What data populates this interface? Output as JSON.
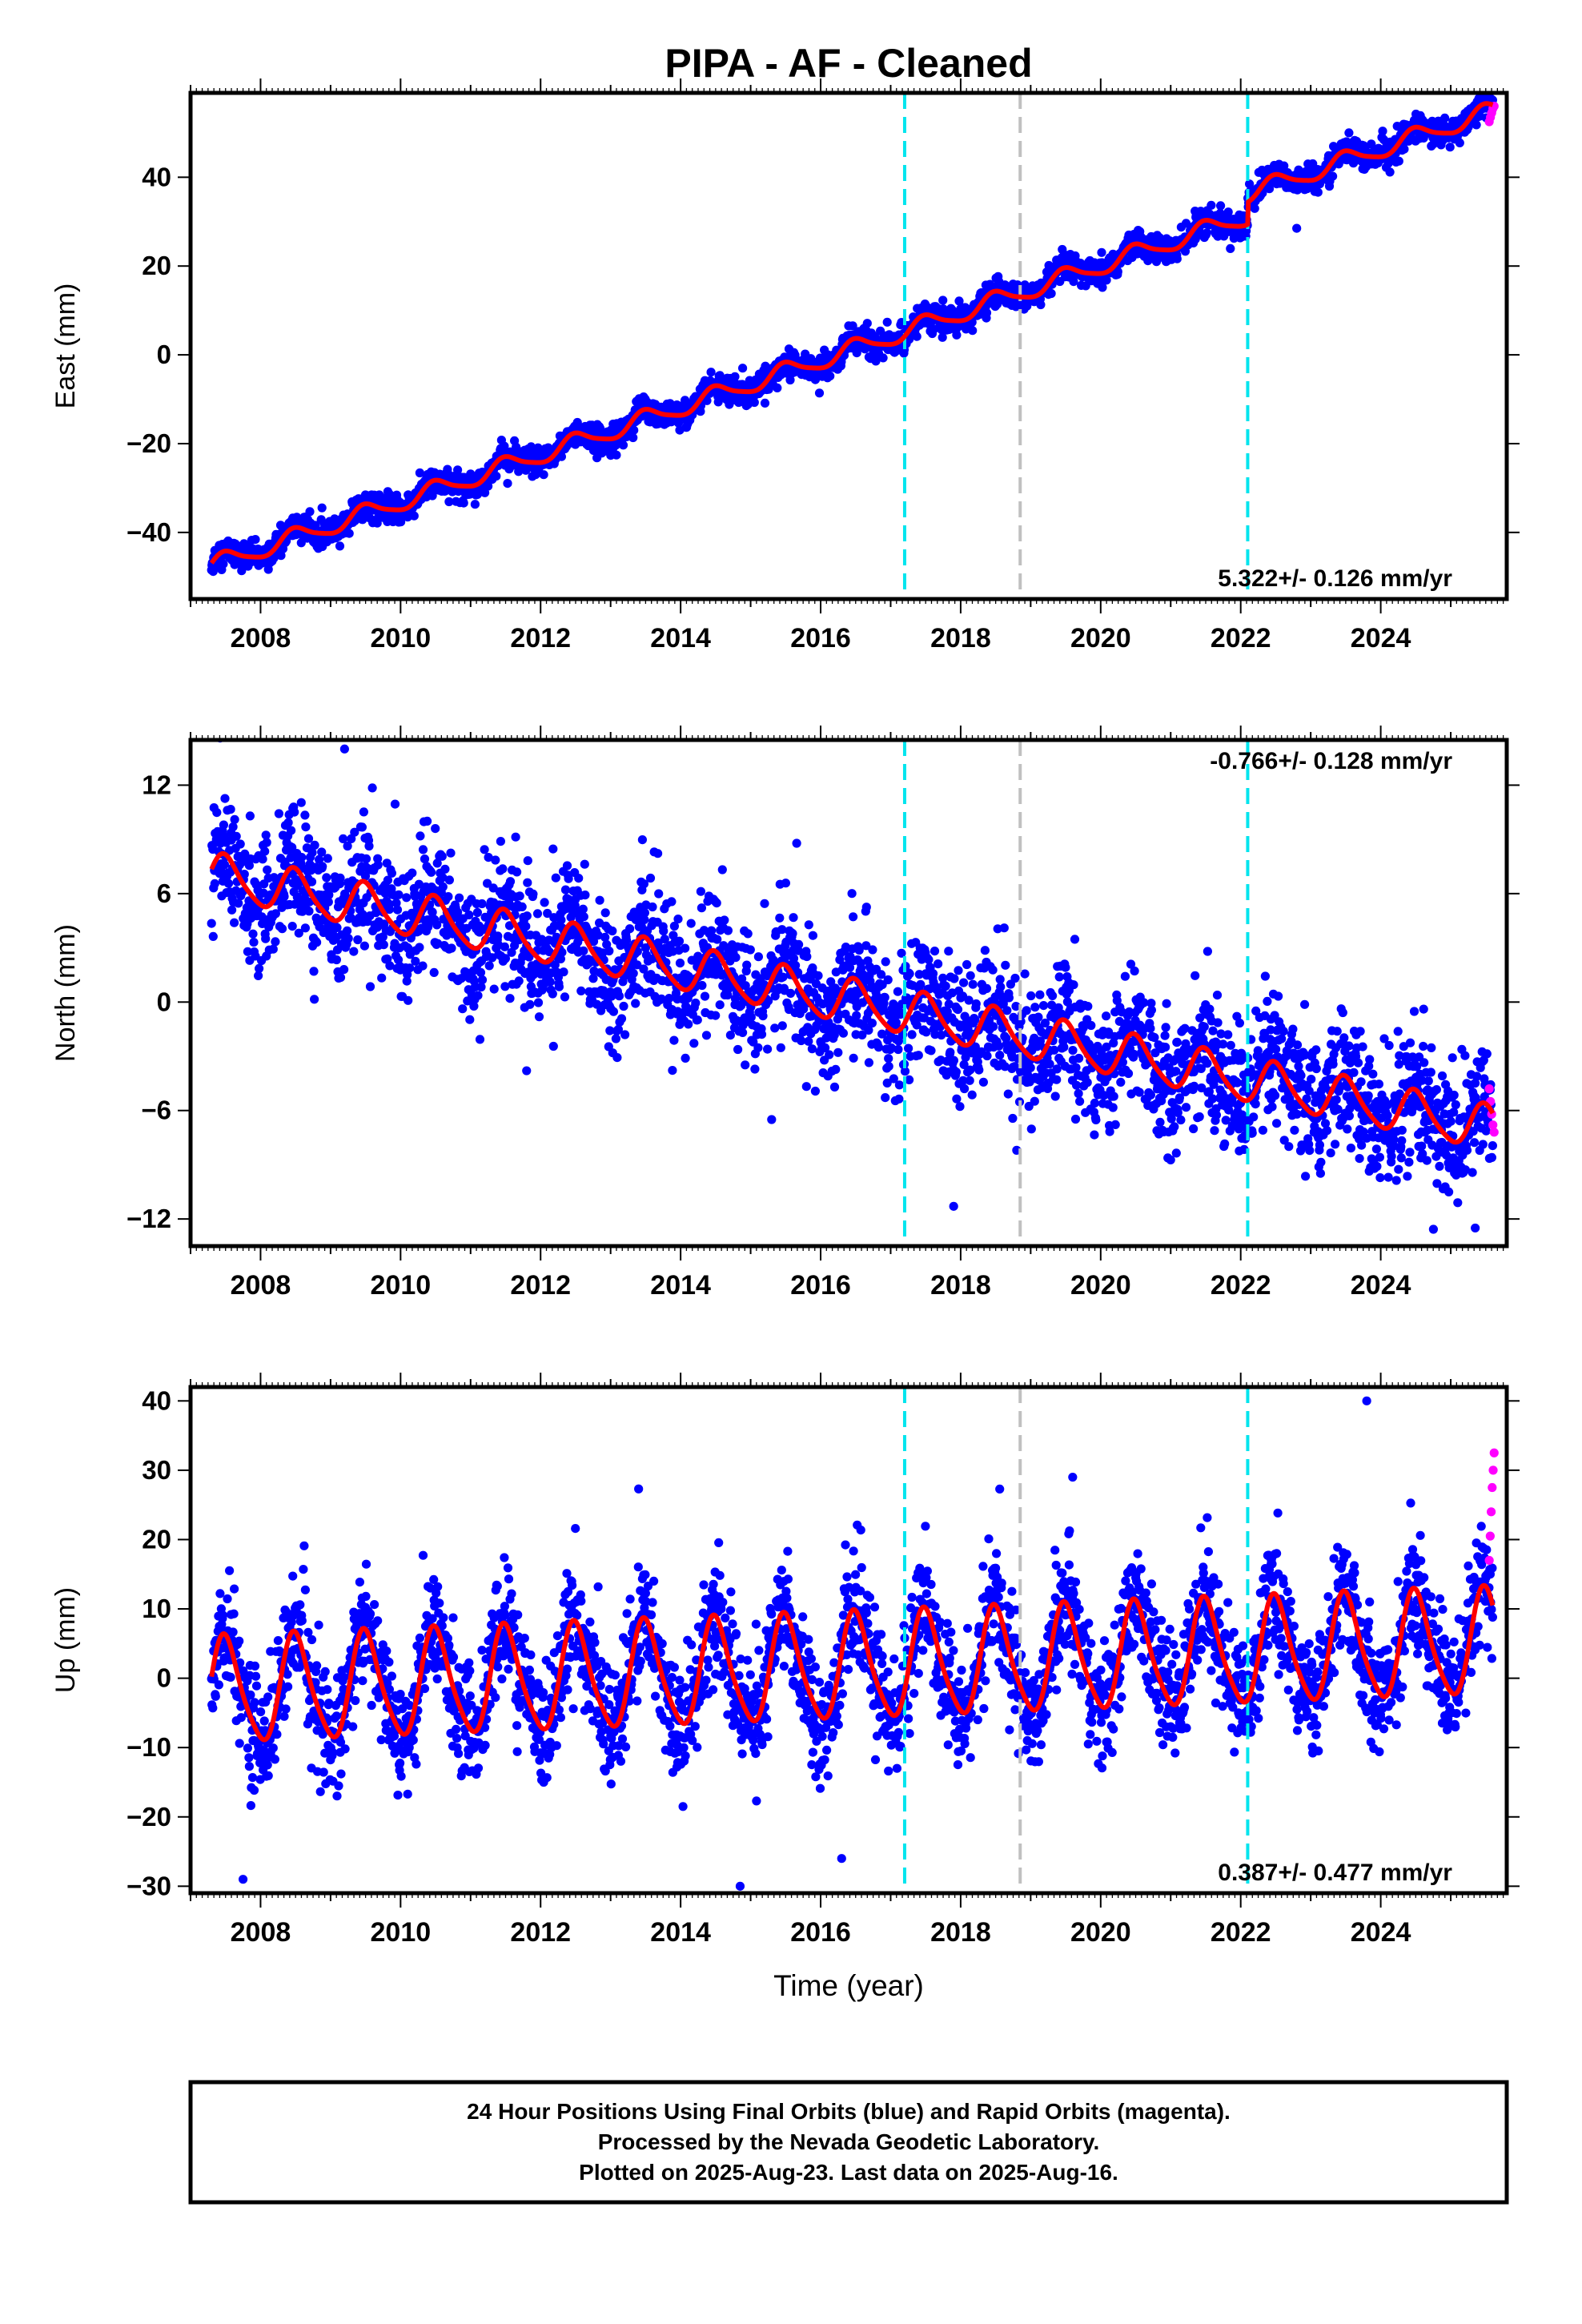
{
  "title": "PIPA  - AF - Cleaned",
  "footer": {
    "line1": "24 Hour Positions Using Final Orbits (blue) and Rapid Orbits (magenta).",
    "line2": "Processed by the Nevada Geodetic Laboratory.",
    "line3": "Plotted on 2025-Aug-23. Last data on 2025-Aug-16."
  },
  "colors": {
    "final_orbits": "#0000ff",
    "rapid_orbits": "#ff00ff",
    "model": "#ff0000",
    "antenna_change": "#00e5ee",
    "other_change": "#c0c0c0"
  },
  "chart_data": [
    {
      "type": "scatter",
      "id": "east",
      "ylabel": "East (mm)",
      "xlim": [
        2007.0,
        2025.8
      ],
      "ylim": [
        -55,
        59
      ],
      "yticks": [
        -40,
        -20,
        0,
        20,
        40
      ],
      "xticks": [
        2008,
        2010,
        2012,
        2014,
        2016,
        2018,
        2020,
        2022,
        2024
      ],
      "xlabel": "",
      "rate_text": "5.322+/- 0.126 mm/yr",
      "rate_position": "bottom-right",
      "model": {
        "start": 2007.3,
        "end": 2025.6,
        "offset_at_start": -47.5,
        "rate_mm_yr": 5.322,
        "annual_amp": 2.0,
        "semiannual_amp": 0.4,
        "steps": [
          {
            "year": 2022.1,
            "size": 5.0
          }
        ]
      },
      "scatter_sd": 1.5,
      "outliers": [
        [
          2022.8,
          28.5
        ]
      ],
      "vertical_lines": [
        {
          "year": 2017.2,
          "kind": "antenna_change"
        },
        {
          "year": 2018.85,
          "kind": "other_change"
        },
        {
          "year": 2022.1,
          "kind": "antenna_change"
        }
      ],
      "rapid_points": {
        "start": 2025.55,
        "end": 2025.62,
        "values": [
          52.5,
          53.5,
          54.5,
          55.5,
          56.0
        ]
      }
    },
    {
      "type": "scatter",
      "id": "north",
      "ylabel": "North (mm)",
      "xlim": [
        2007.0,
        2025.8
      ],
      "ylim": [
        -13.5,
        14.5
      ],
      "yticks": [
        -12,
        -6,
        0,
        6,
        12
      ],
      "xticks": [
        2008,
        2010,
        2012,
        2014,
        2016,
        2018,
        2020,
        2022,
        2024
      ],
      "xlabel": "",
      "rate_text": "-0.766+/- 0.128 mm/yr",
      "rate_position": "top-right",
      "model": {
        "start": 2007.3,
        "end": 2025.6,
        "offset_at_start": 7.0,
        "rate_mm_yr": -0.766,
        "annual_amp": 1.2,
        "semiannual_amp": 0.2,
        "steps": []
      },
      "scatter_sd": 1.8,
      "outliers": [
        [
          2009.2,
          14.0
        ],
        [
          2011.8,
          -3.8
        ],
        [
          2015.3,
          -6.5
        ],
        [
          2016.2,
          -4.7
        ],
        [
          2017.9,
          -11.3
        ],
        [
          2018.8,
          -8.2
        ],
        [
          2025.35,
          -12.5
        ]
      ],
      "vertical_lines": [
        {
          "year": 2017.2,
          "kind": "antenna_change"
        },
        {
          "year": 2018.85,
          "kind": "other_change"
        },
        {
          "year": 2022.1,
          "kind": "antenna_change"
        }
      ],
      "rapid_points": {
        "start": 2025.55,
        "end": 2025.62,
        "values": [
          -4.8,
          -5.5,
          -6.2,
          -6.8,
          -7.2
        ]
      }
    },
    {
      "type": "scatter",
      "id": "up",
      "ylabel": "Up (mm)",
      "xlim": [
        2007.0,
        2025.8
      ],
      "ylim": [
        -31,
        42
      ],
      "yticks": [
        -30,
        -20,
        -10,
        0,
        10,
        20,
        30,
        40
      ],
      "xticks": [
        2008,
        2010,
        2012,
        2014,
        2016,
        2018,
        2020,
        2022,
        2024
      ],
      "xlabel": "Time (year)",
      "rate_text": "0.387+/- 0.477 mm/yr",
      "rate_position": "bottom-right",
      "model": {
        "start": 2007.3,
        "end": 2025.6,
        "offset_at_start": -2.0,
        "rate_mm_yr": 0.387,
        "annual_amp": 7.5,
        "semiannual_amp": 1.2,
        "steps": []
      },
      "scatter_sd": 4.2,
      "outliers": [
        [
          2007.75,
          -29.0
        ],
        [
          2013.4,
          27.3
        ],
        [
          2014.85,
          -30.0
        ],
        [
          2016.3,
          -26.0
        ],
        [
          2023.8,
          40.0
        ],
        [
          2019.6,
          29.0
        ]
      ],
      "vertical_lines": [
        {
          "year": 2017.2,
          "kind": "antenna_change"
        },
        {
          "year": 2018.85,
          "kind": "other_change"
        },
        {
          "year": 2022.1,
          "kind": "antenna_change"
        }
      ],
      "rapid_points": {
        "start": 2025.55,
        "end": 2025.62,
        "values": [
          17.0,
          20.5,
          24.0,
          27.5,
          30.0,
          32.5
        ]
      }
    }
  ]
}
